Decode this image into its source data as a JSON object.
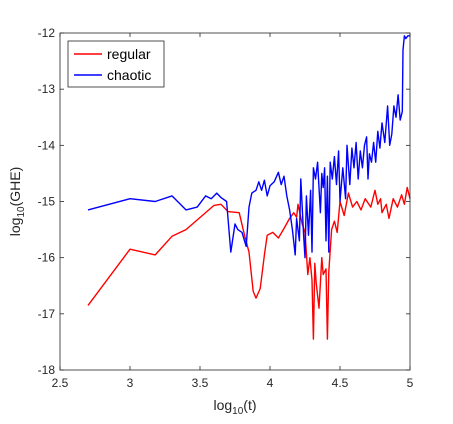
{
  "chart_data": {
    "type": "line",
    "title": "",
    "xlabel": {
      "base": "log",
      "sub": "10",
      "rest": "(t)"
    },
    "ylabel": {
      "base": "log",
      "sub": "10",
      "rest": "(GHE)"
    },
    "xlim": [
      2.5,
      5
    ],
    "ylim": [
      -18,
      -12
    ],
    "xticks": [
      2.5,
      3,
      3.5,
      4,
      4.5,
      5
    ],
    "xtick_labels": [
      "2.5",
      "3",
      "3.5",
      "4",
      "4.5",
      "5"
    ],
    "yticks": [
      -18,
      -17,
      -16,
      -15,
      -14,
      -13,
      -12
    ],
    "ytick_labels": [
      "-18",
      "-17",
      "-16",
      "-15",
      "-14",
      "-13",
      "-12"
    ],
    "grid": false,
    "legend_position": "top-left",
    "series": [
      {
        "name": "regular",
        "color": "#ff0000",
        "points": [
          [
            2.7,
            -16.85
          ],
          [
            3.0,
            -15.85
          ],
          [
            3.18,
            -15.95
          ],
          [
            3.3,
            -15.62
          ],
          [
            3.4,
            -15.5
          ],
          [
            3.6,
            -15.07
          ],
          [
            3.65,
            -15.05
          ],
          [
            3.7,
            -15.18
          ],
          [
            3.78,
            -15.2
          ],
          [
            3.82,
            -15.62
          ],
          [
            3.85,
            -15.9
          ],
          [
            3.88,
            -16.6
          ],
          [
            3.9,
            -16.72
          ],
          [
            3.93,
            -16.55
          ],
          [
            3.96,
            -15.95
          ],
          [
            3.98,
            -15.6
          ],
          [
            4.02,
            -15.55
          ],
          [
            4.06,
            -15.65
          ],
          [
            4.1,
            -15.48
          ],
          [
            4.14,
            -15.3
          ],
          [
            4.17,
            -15.2
          ],
          [
            4.19,
            -15.28
          ],
          [
            4.2,
            -15.05
          ],
          [
            4.23,
            -15.4
          ],
          [
            4.25,
            -15.55
          ],
          [
            4.27,
            -16.3
          ],
          [
            4.285,
            -16.0
          ],
          [
            4.3,
            -16.4
          ],
          [
            4.31,
            -17.45
          ],
          [
            4.32,
            -16.1
          ],
          [
            4.33,
            -16.45
          ],
          [
            4.35,
            -16.9
          ],
          [
            4.37,
            -16.0
          ],
          [
            4.38,
            -16.3
          ],
          [
            4.4,
            -16.2
          ],
          [
            4.41,
            -17.45
          ],
          [
            4.42,
            -16.25
          ],
          [
            4.44,
            -15.5
          ],
          [
            4.46,
            -15.35
          ],
          [
            4.48,
            -15.55
          ],
          [
            4.5,
            -15.0
          ],
          [
            4.53,
            -15.25
          ],
          [
            4.56,
            -14.85
          ],
          [
            4.59,
            -15.1
          ],
          [
            4.62,
            -15.0
          ],
          [
            4.65,
            -15.15
          ],
          [
            4.68,
            -14.95
          ],
          [
            4.72,
            -15.1
          ],
          [
            4.75,
            -14.8
          ],
          [
            4.77,
            -15.05
          ],
          [
            4.79,
            -14.95
          ],
          [
            4.8,
            -15.2
          ],
          [
            4.83,
            -15.05
          ],
          [
            4.85,
            -15.3
          ],
          [
            4.88,
            -14.95
          ],
          [
            4.91,
            -15.1
          ],
          [
            4.94,
            -14.88
          ],
          [
            4.96,
            -15.05
          ],
          [
            4.98,
            -14.75
          ],
          [
            5.0,
            -14.95
          ]
        ]
      },
      {
        "name": "chaotic",
        "color": "#0000ff",
        "points": [
          [
            2.7,
            -15.15
          ],
          [
            3.0,
            -14.95
          ],
          [
            3.18,
            -15.0
          ],
          [
            3.3,
            -14.9
          ],
          [
            3.4,
            -15.15
          ],
          [
            3.48,
            -15.1
          ],
          [
            3.54,
            -14.9
          ],
          [
            3.58,
            -14.95
          ],
          [
            3.62,
            -14.85
          ],
          [
            3.65,
            -14.93
          ],
          [
            3.69,
            -15.0
          ],
          [
            3.72,
            -15.9
          ],
          [
            3.75,
            -15.4
          ],
          [
            3.77,
            -15.5
          ],
          [
            3.8,
            -15.55
          ],
          [
            3.83,
            -15.8
          ],
          [
            3.85,
            -15.1
          ],
          [
            3.87,
            -14.85
          ],
          [
            3.9,
            -14.8
          ],
          [
            3.92,
            -14.65
          ],
          [
            3.94,
            -14.8
          ],
          [
            3.96,
            -14.62
          ],
          [
            3.98,
            -14.9
          ],
          [
            4.0,
            -14.72
          ],
          [
            4.03,
            -14.65
          ],
          [
            4.06,
            -14.48
          ],
          [
            4.08,
            -14.7
          ],
          [
            4.1,
            -14.55
          ],
          [
            4.12,
            -14.9
          ],
          [
            4.14,
            -15.15
          ],
          [
            4.16,
            -15.5
          ],
          [
            4.18,
            -15.95
          ],
          [
            4.19,
            -15.3
          ],
          [
            4.21,
            -15.7
          ],
          [
            4.22,
            -14.6
          ],
          [
            4.24,
            -15.6
          ],
          [
            4.25,
            -16.0
          ],
          [
            4.26,
            -14.9
          ],
          [
            4.275,
            -15.6
          ],
          [
            4.29,
            -14.8
          ],
          [
            4.3,
            -15.9
          ],
          [
            4.31,
            -14.4
          ],
          [
            4.325,
            -14.6
          ],
          [
            4.34,
            -14.3
          ],
          [
            4.36,
            -15.2
          ],
          [
            4.37,
            -14.5
          ],
          [
            4.38,
            -14.75
          ],
          [
            4.39,
            -14.4
          ],
          [
            4.4,
            -15.7
          ],
          [
            4.41,
            -14.55
          ],
          [
            4.42,
            -15.9
          ],
          [
            4.43,
            -14.3
          ],
          [
            4.445,
            -14.6
          ],
          [
            4.46,
            -14.2
          ],
          [
            4.475,
            -14.7
          ],
          [
            4.49,
            -14.1
          ],
          [
            4.5,
            -15.0
          ],
          [
            4.52,
            -14.4
          ],
          [
            4.54,
            -14.95
          ],
          [
            4.55,
            -14.0
          ],
          [
            4.57,
            -14.7
          ],
          [
            4.585,
            -14.05
          ],
          [
            4.6,
            -14.4
          ],
          [
            4.615,
            -13.95
          ],
          [
            4.63,
            -14.6
          ],
          [
            4.645,
            -14.1
          ],
          [
            4.66,
            -14.4
          ],
          [
            4.675,
            -14.0
          ],
          [
            4.69,
            -13.85
          ],
          [
            4.7,
            -14.6
          ],
          [
            4.71,
            -14.15
          ],
          [
            4.725,
            -14.3
          ],
          [
            4.74,
            -13.95
          ],
          [
            4.755,
            -14.3
          ],
          [
            4.77,
            -13.75
          ],
          [
            4.785,
            -14.05
          ],
          [
            4.8,
            -13.6
          ],
          [
            4.82,
            -13.95
          ],
          [
            4.84,
            -13.3
          ],
          [
            4.855,
            -14.0
          ],
          [
            4.87,
            -13.8
          ],
          [
            4.885,
            -13.3
          ],
          [
            4.9,
            -13.5
          ],
          [
            4.915,
            -13.1
          ],
          [
            4.93,
            -13.55
          ],
          [
            4.945,
            -13.4
          ],
          [
            4.95,
            -12.3
          ],
          [
            4.96,
            -12.05
          ],
          [
            4.97,
            -12.1
          ],
          [
            4.985,
            -12.05
          ],
          [
            5.0,
            -12.05
          ]
        ]
      }
    ]
  }
}
